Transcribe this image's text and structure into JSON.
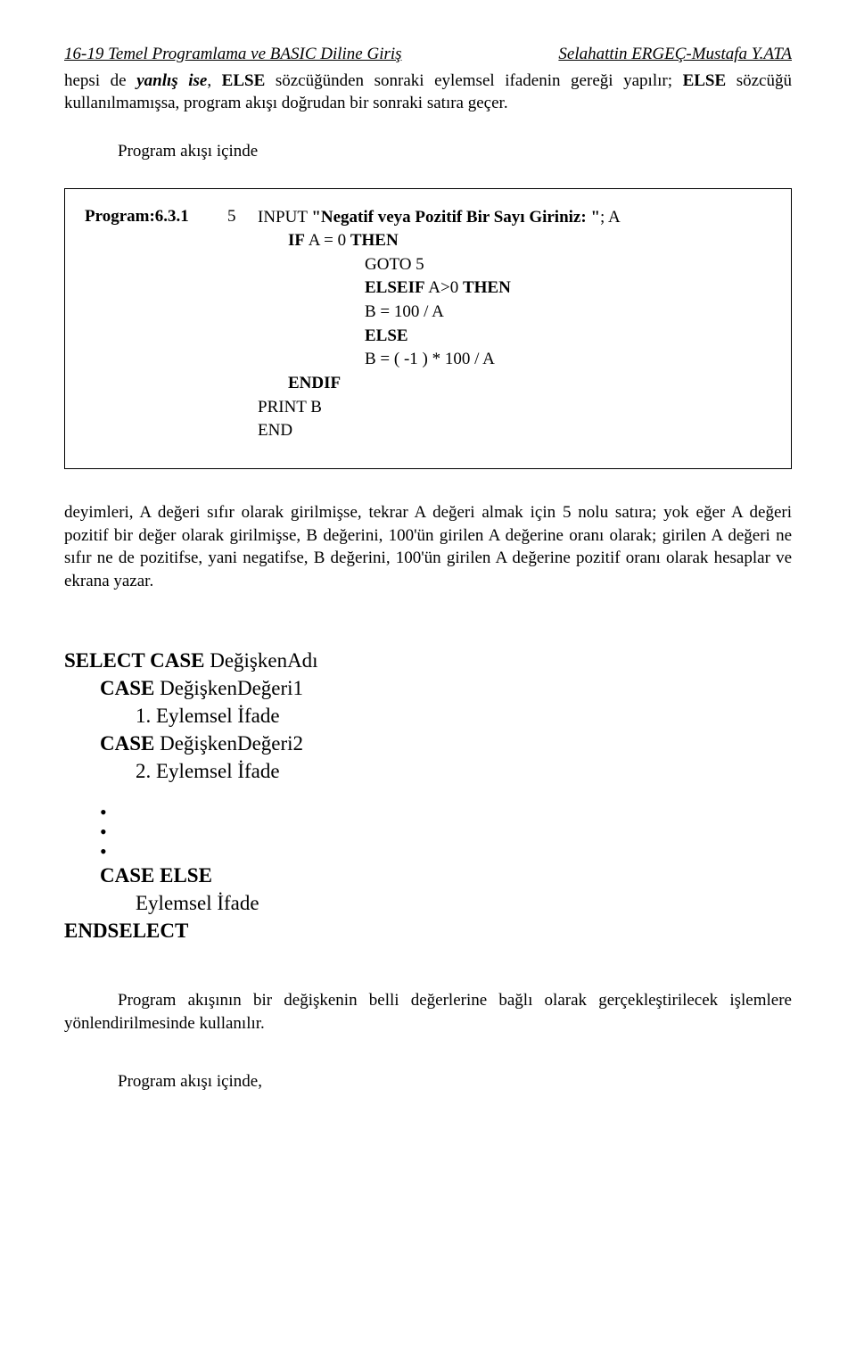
{
  "header": {
    "left": "16-19    Temel Programlama ve BASIC  Diline Giriş",
    "right": "Selahattin ERGEÇ-Mustafa Y.ATA"
  },
  "intro": {
    "p1a": "hepsi de ",
    "p1b_bi": "yanlış ise",
    "p1c": ", ",
    "p1d_b": "ELSE",
    "p1e": " sözcüğünden sonraki eylemsel ifadenin gereği yapılır; ",
    "p1f_b": "ELSE",
    "p1g": " sözcüğü kullanılmamışsa, program akışı doğrudan bir sonraki satıra geçer."
  },
  "flow_label": "Program akışı içinde",
  "codebox": {
    "label": "Program:6.3.1",
    "five": "5",
    "l1a": "INPUT ",
    "l1b_b": "\"Negatif veya Pozitif Bir Sayı Giriniz: \"",
    "l1c": "; A",
    "l2a_b": "IF",
    "l2b": "  A = 0  ",
    "l2c_b": "THEN",
    "l3": "GOTO  5",
    "l4a_b": "ELSEIF",
    "l4b": " A>0 ",
    "l4c_b": "THEN",
    "l5": "B = 100 / A",
    "l6_b": "ELSE",
    "l7": "B = ( -1 ) * 100 / A",
    "l8_b": "ENDIF",
    "l9": "PRINT  B",
    "l10": "END"
  },
  "body_para": "deyimleri, A değeri sıfır olarak girilmişse, tekrar A değeri almak için 5 nolu satıra; yok eğer A değeri pozitif bir değer olarak girilmişse,  B değerini, 100'ün girilen A değerine oranı olarak; girilen A değeri ne sıfır ne de pozitifse, yani negatifse, B değerini, 100'ün girilen A değerine pozitif oranı olarak hesaplar ve ekrana yazar.",
  "select": {
    "l1a_b": "SELECT  CASE",
    "l1b": "   DeğişkenAdı",
    "l2a_b": "CASE",
    "l2b": "  DeğişkenDeğeri1",
    "l3": "1. Eylemsel İfade",
    "l4a_b": "CASE",
    "l4b": "  DeğişkenDeğeri2",
    "l5": "2. Eylemsel İfade",
    "l6_b": "CASE ELSE",
    "l7": "Eylemsel İfade",
    "l8_b": "ENDSELECT"
  },
  "desc_para": "Program akışının bir değişkenin belli değerlerine bağlı olarak gerçekleştirilecek işlemlere yönlendirilmesinde kullanılır.",
  "last_line": "Program akışı içinde,"
}
